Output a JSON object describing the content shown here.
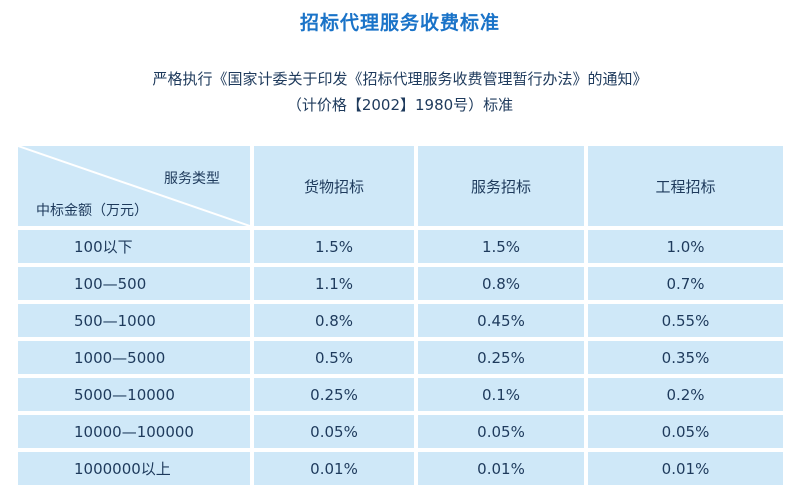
{
  "title": "招标代理服务收费标准",
  "subtitle_line1": "严格执行《国家计委关于印发《招标代理服务收费管理暂行办法》的通知》",
  "subtitle_line2": "（计价格【2002】1980号）标准",
  "table": {
    "corner_top": "服务类型",
    "corner_bottom": "中标金额（万元）",
    "columns": [
      "货物招标",
      "服务招标",
      "工程招标"
    ],
    "rows": [
      {
        "range": "100以下",
        "values": [
          "1.5%",
          "1.5%",
          "1.0%"
        ]
      },
      {
        "range": "100—500",
        "values": [
          "1.1%",
          "0.8%",
          "0.7%"
        ]
      },
      {
        "range": "500—1000",
        "values": [
          "0.8%",
          "0.45%",
          "0.55%"
        ]
      },
      {
        "range": "1000—5000",
        "values": [
          "0.5%",
          "0.25%",
          "0.35%"
        ]
      },
      {
        "range": "5000—10000",
        "values": [
          "0.25%",
          "0.1%",
          "0.2%"
        ]
      },
      {
        "range": "10000—100000",
        "values": [
          "0.05%",
          "0.05%",
          "0.05%"
        ]
      },
      {
        "range": "1000000以上",
        "values": [
          "0.01%",
          "0.01%",
          "0.01%"
        ]
      }
    ]
  },
  "colors": {
    "title": "#1a73c8",
    "cell_bg": "#cfe8f8",
    "text": "#1e3a5c"
  }
}
